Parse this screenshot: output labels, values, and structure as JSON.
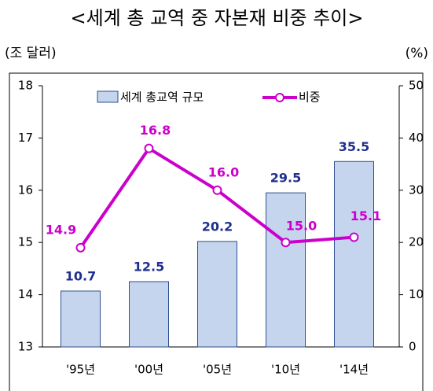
{
  "chart_data": {
    "type": "bar_line",
    "title": "<세계 총 교역 중 자본재 비중 추이>",
    "y_label": "(조 달러)",
    "y2_label": "(%)",
    "categories": [
      "'95년",
      "'00년",
      "'05년",
      "'10년",
      "'14년"
    ],
    "series": [
      {
        "name": "세계 총교역 규모",
        "type": "bar",
        "axis": "y2",
        "color": "#c5d5ee",
        "values": [
          10.7,
          12.5,
          20.2,
          29.5,
          35.5
        ],
        "value_labels": [
          "10.7",
          "12.5",
          "20.2",
          "29.5",
          "35.5"
        ]
      },
      {
        "name": "비중",
        "type": "line",
        "axis": "y",
        "color": "#cc00cc",
        "values": [
          14.9,
          16.8,
          16.0,
          15.0,
          15.1
        ],
        "value_labels": [
          "14.9",
          "16.8",
          "16.0",
          "15.0",
          "15.1"
        ]
      }
    ],
    "ylim": [
      13,
      18
    ],
    "yticks": [
      13,
      14,
      15,
      16,
      17,
      18
    ],
    "y2lim": [
      0,
      50
    ],
    "y2ticks": [
      0,
      10,
      20,
      30,
      40,
      50
    ]
  }
}
